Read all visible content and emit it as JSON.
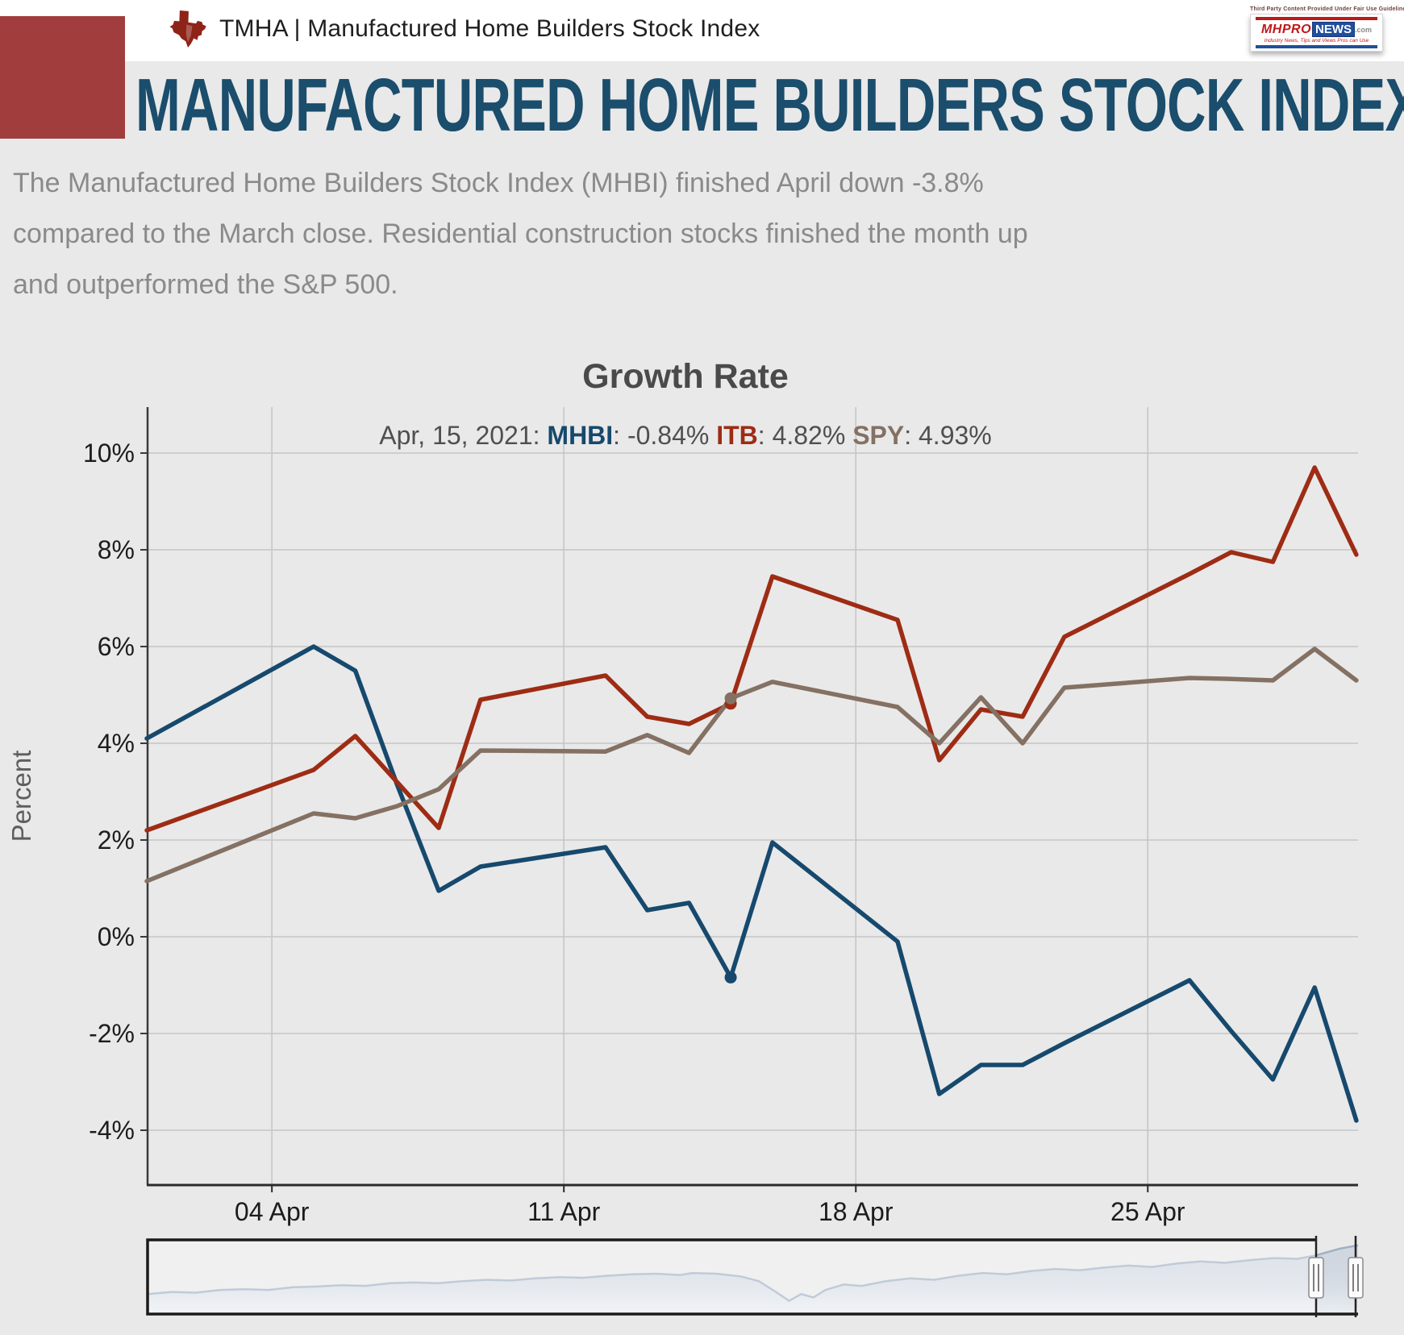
{
  "header": {
    "brand": "TMHA | Manufactured Home Builders Stock Index",
    "fair_use_note": "Third Party Content Provided Under Fair Use Guidelines",
    "logo": {
      "mhpro": "MHPRO",
      "news": "NEWS",
      "com": ".com",
      "tagline": "Industry News, Tips and Views Pros can Use"
    }
  },
  "page": {
    "title": "MANUFACTURED HOME BUILDERS STOCK INDEX",
    "intro": "The Manufactured Home Builders Stock Index (MHBI) finished April down -3.8%\ncompared to the March close. Residential construction stocks finished the month up\nand outperformed the S&P 500."
  },
  "colors": {
    "accent_maroon": "#a23d3d",
    "heading_blue": "#1b4d6c",
    "mhbi_blue": "#16496d",
    "itb_red": "#9e2c14",
    "spy_gray": "#847164",
    "gridline": "#c6c6c6",
    "axis": "#3a3a3a",
    "nav_line": "#9fb0c4",
    "nav_fill": "rgba(165,182,205,0.35)"
  },
  "chart_data": {
    "type": "line",
    "title": "Growth Rate",
    "ylabel": "Percent",
    "xlabel": "",
    "ylim": [
      -5.1,
      11.0
    ],
    "xlim_days_april_2021": [
      1,
      30
    ],
    "grid": true,
    "tooltip": {
      "date_label": "Apr, 15, 2021:",
      "entries": [
        {
          "name": "MHBI",
          "value": "-0.84%",
          "color": "#16496d"
        },
        {
          "name": "ITB",
          "value": "4.82%",
          "color": "#9e2c14"
        },
        {
          "name": "SPY",
          "value": "4.93%",
          "color": "#847164"
        }
      ]
    },
    "yticks": [
      {
        "v": 10,
        "label": "10%"
      },
      {
        "v": 8,
        "label": "8%"
      },
      {
        "v": 6,
        "label": "6%"
      },
      {
        "v": 4,
        "label": "4%"
      },
      {
        "v": 2,
        "label": "2%"
      },
      {
        "v": 0,
        "label": "0%"
      },
      {
        "v": -2,
        "label": "-2%"
      },
      {
        "v": -4,
        "label": "-4%"
      }
    ],
    "xticks": [
      {
        "day": 4,
        "label": "04 Apr"
      },
      {
        "day": 11,
        "label": "11 Apr"
      },
      {
        "day": 18,
        "label": "18 Apr"
      },
      {
        "day": 25,
        "label": "25 Apr"
      }
    ],
    "marker_day": 15,
    "series": [
      {
        "name": "MHBI",
        "color": "#16496d",
        "points": [
          [
            1,
            4.1
          ],
          [
            5,
            6.0
          ],
          [
            6,
            5.5
          ],
          [
            7,
            3.15
          ],
          [
            8,
            0.95
          ],
          [
            9,
            1.45
          ],
          [
            12,
            1.85
          ],
          [
            13,
            0.55
          ],
          [
            14,
            0.7
          ],
          [
            15,
            -0.84
          ],
          [
            16,
            1.95
          ],
          [
            19,
            -0.1
          ],
          [
            20,
            -3.25
          ],
          [
            21,
            -2.65
          ],
          [
            22,
            -2.65
          ],
          [
            23,
            -2.2
          ],
          [
            26,
            -0.9
          ],
          [
            27,
            -1.95
          ],
          [
            28,
            -2.95
          ],
          [
            29,
            -1.05
          ],
          [
            30,
            -3.8
          ]
        ]
      },
      {
        "name": "ITB",
        "color": "#9e2c14",
        "points": [
          [
            1,
            2.2
          ],
          [
            5,
            3.45
          ],
          [
            6,
            4.15
          ],
          [
            7,
            3.2
          ],
          [
            8,
            2.25
          ],
          [
            9,
            4.9
          ],
          [
            12,
            5.4
          ],
          [
            13,
            4.55
          ],
          [
            14,
            4.4
          ],
          [
            15,
            4.82
          ],
          [
            16,
            7.45
          ],
          [
            19,
            6.55
          ],
          [
            20,
            3.65
          ],
          [
            21,
            4.7
          ],
          [
            22,
            4.55
          ],
          [
            23,
            6.2
          ],
          [
            26,
            7.5
          ],
          [
            27,
            7.95
          ],
          [
            28,
            7.75
          ],
          [
            29,
            9.7
          ],
          [
            30,
            7.9
          ]
        ]
      },
      {
        "name": "SPY",
        "color": "#847164",
        "points": [
          [
            1,
            1.15
          ],
          [
            5,
            2.55
          ],
          [
            6,
            2.45
          ],
          [
            7,
            2.7
          ],
          [
            8,
            3.05
          ],
          [
            9,
            3.85
          ],
          [
            12,
            3.83
          ],
          [
            13,
            4.17
          ],
          [
            14,
            3.8
          ],
          [
            15,
            4.93
          ],
          [
            16,
            5.27
          ],
          [
            19,
            4.75
          ],
          [
            20,
            4.0
          ],
          [
            21,
            4.95
          ],
          [
            22,
            4.0
          ],
          [
            23,
            5.15
          ],
          [
            26,
            5.35
          ],
          [
            27,
            5.33
          ],
          [
            28,
            5.3
          ],
          [
            29,
            5.95
          ],
          [
            30,
            5.3
          ]
        ]
      }
    ],
    "navigator": {
      "points": [
        [
          0,
          0.26
        ],
        [
          0.02,
          0.29
        ],
        [
          0.04,
          0.28
        ],
        [
          0.06,
          0.32
        ],
        [
          0.08,
          0.33
        ],
        [
          0.1,
          0.32
        ],
        [
          0.12,
          0.36
        ],
        [
          0.14,
          0.37
        ],
        [
          0.16,
          0.39
        ],
        [
          0.18,
          0.38
        ],
        [
          0.2,
          0.42
        ],
        [
          0.22,
          0.43
        ],
        [
          0.24,
          0.42
        ],
        [
          0.26,
          0.45
        ],
        [
          0.28,
          0.47
        ],
        [
          0.3,
          0.46
        ],
        [
          0.32,
          0.49
        ],
        [
          0.34,
          0.51
        ],
        [
          0.36,
          0.5
        ],
        [
          0.38,
          0.53
        ],
        [
          0.4,
          0.55
        ],
        [
          0.42,
          0.56
        ],
        [
          0.44,
          0.54
        ],
        [
          0.45,
          0.57
        ],
        [
          0.47,
          0.56
        ],
        [
          0.49,
          0.52
        ],
        [
          0.505,
          0.45
        ],
        [
          0.52,
          0.28
        ],
        [
          0.53,
          0.16
        ],
        [
          0.54,
          0.26
        ],
        [
          0.55,
          0.21
        ],
        [
          0.56,
          0.32
        ],
        [
          0.575,
          0.4
        ],
        [
          0.59,
          0.38
        ],
        [
          0.61,
          0.45
        ],
        [
          0.63,
          0.49
        ],
        [
          0.65,
          0.47
        ],
        [
          0.67,
          0.53
        ],
        [
          0.69,
          0.57
        ],
        [
          0.71,
          0.55
        ],
        [
          0.73,
          0.6
        ],
        [
          0.75,
          0.63
        ],
        [
          0.77,
          0.61
        ],
        [
          0.79,
          0.65
        ],
        [
          0.81,
          0.68
        ],
        [
          0.83,
          0.66
        ],
        [
          0.85,
          0.71
        ],
        [
          0.87,
          0.74
        ],
        [
          0.89,
          0.72
        ],
        [
          0.91,
          0.76
        ],
        [
          0.93,
          0.79
        ],
        [
          0.95,
          0.78
        ],
        [
          0.965,
          0.83
        ],
        [
          0.975,
          0.88
        ],
        [
          0.985,
          0.93
        ],
        [
          1,
          0.98
        ]
      ]
    }
  }
}
